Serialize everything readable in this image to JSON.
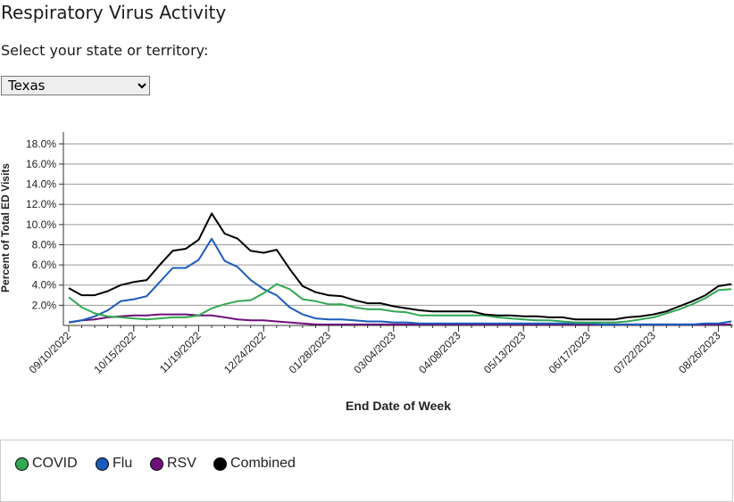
{
  "page": {
    "title": "Respiratory Virus Activity",
    "select_label": "Select your state or territory:",
    "state_selected": "Texas"
  },
  "colors": {
    "covid": "#33a852",
    "flu": "#1a5cbd",
    "rsv": "#6f0f7a",
    "combined": "#000000"
  },
  "chart_data": {
    "type": "line",
    "ylabel": "Percent of Total ED Visits",
    "xlabel": "End Date of Week",
    "ylim": [
      0,
      19
    ],
    "yticks": [
      2,
      4,
      6,
      8,
      10,
      12,
      14,
      16,
      18
    ],
    "ytick_labels": [
      "2.0%",
      "4.0%",
      "6.0%",
      "8.0%",
      "10.0%",
      "12.0%",
      "14.0%",
      "16.0%",
      "18.0%"
    ],
    "xtick_labels": [
      "09/10/2022",
      "10/15/2022",
      "11/19/2022",
      "12/24/2022",
      "01/28/2023",
      "03/04/2023",
      "04/08/2023",
      "05/13/2023",
      "06/17/2023",
      "07/22/2023",
      "08/26/2023"
    ],
    "xtick_weeks": [
      0,
      5,
      10,
      15,
      20,
      25,
      30,
      35,
      40,
      45,
      50
    ],
    "grid": true,
    "legend_position": "bottom",
    "series": [
      {
        "name": "COVID",
        "values": [
          2.8,
          1.8,
          1.2,
          0.9,
          0.8,
          0.7,
          0.6,
          0.7,
          0.8,
          0.8,
          1.0,
          1.7,
          2.1,
          2.4,
          2.5,
          3.2,
          4.1,
          3.6,
          2.6,
          2.4,
          2.1,
          2.1,
          1.8,
          1.6,
          1.6,
          1.4,
          1.3,
          1.0,
          1.0,
          1.0,
          1.0,
          1.0,
          1.0,
          0.8,
          0.7,
          0.6,
          0.5,
          0.5,
          0.4,
          0.3,
          0.3,
          0.3,
          0.3,
          0.4,
          0.6,
          0.8,
          1.2,
          1.6,
          2.1,
          2.7,
          3.5,
          3.6
        ]
      },
      {
        "name": "Flu",
        "values": [
          0.3,
          0.5,
          0.9,
          1.5,
          2.4,
          2.6,
          2.9,
          4.3,
          5.7,
          5.7,
          6.5,
          8.6,
          6.4,
          5.8,
          4.5,
          3.6,
          3.0,
          1.8,
          1.1,
          0.7,
          0.6,
          0.6,
          0.5,
          0.4,
          0.4,
          0.3,
          0.3,
          0.2,
          0.2,
          0.2,
          0.2,
          0.2,
          0.2,
          0.2,
          0.2,
          0.2,
          0.2,
          0.2,
          0.2,
          0.2,
          0.2,
          0.1,
          0.1,
          0.1,
          0.1,
          0.1,
          0.1,
          0.1,
          0.1,
          0.2,
          0.2,
          0.4
        ]
      },
      {
        "name": "RSV",
        "values": [
          0.3,
          0.5,
          0.6,
          0.8,
          0.9,
          1.0,
          1.0,
          1.1,
          1.1,
          1.1,
          1.0,
          1.0,
          0.8,
          0.6,
          0.5,
          0.5,
          0.4,
          0.3,
          0.2,
          0.1,
          0.1,
          0.1,
          0.1,
          0.1,
          0.1,
          0.1,
          0.1,
          0.1,
          0.1,
          0.1,
          0.1,
          0.1,
          0.1,
          0.1,
          0.1,
          0.1,
          0.1,
          0.1,
          0.1,
          0.1,
          0.1,
          0.1,
          0.1,
          0.1,
          0.1,
          0.1,
          0.1,
          0.1,
          0.1,
          0.1,
          0.1,
          0.1
        ]
      },
      {
        "name": "Combined",
        "values": [
          3.7,
          3.0,
          3.0,
          3.4,
          4.0,
          4.3,
          4.5,
          6.0,
          7.4,
          7.6,
          8.5,
          11.1,
          9.1,
          8.6,
          7.4,
          7.2,
          7.5,
          5.6,
          3.9,
          3.3,
          3.0,
          2.9,
          2.5,
          2.2,
          2.2,
          1.9,
          1.7,
          1.5,
          1.4,
          1.4,
          1.4,
          1.4,
          1.1,
          1.0,
          1.0,
          0.9,
          0.9,
          0.8,
          0.8,
          0.6,
          0.6,
          0.6,
          0.6,
          0.8,
          0.9,
          1.1,
          1.4,
          1.9,
          2.4,
          3.0,
          3.9,
          4.1
        ]
      }
    ]
  }
}
